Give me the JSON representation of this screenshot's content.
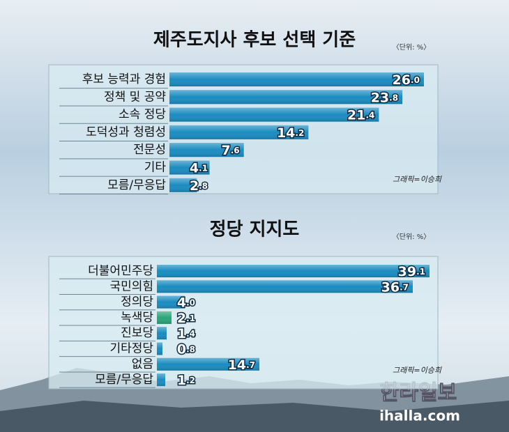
{
  "chart_data": [
    {
      "type": "bar",
      "title": "제주도지사  후보 선택 기준",
      "unit": "〈단위: %〉",
      "credit": "그래픽=이승희",
      "categories": [
        "후보 능력과 경험",
        "정책 및 공약",
        "소속 정당",
        "도덕성과 청렴성",
        "전문성",
        "기타",
        "모름/무응답"
      ],
      "values": [
        26.0,
        23.8,
        21.4,
        14.2,
        7.6,
        4.1,
        2.8
      ],
      "value_labels": [
        "26.0",
        "23.8",
        "21.4",
        "14.2",
        "7.6",
        "4.1",
        "2.8"
      ],
      "colors": [
        "#1b8cc0",
        "#1b8cc0",
        "#1b8cc0",
        "#1b8cc0",
        "#1b8cc0",
        "#1b8cc0",
        "#1b8cc0"
      ],
      "xlim": [
        0,
        27
      ]
    },
    {
      "type": "bar",
      "title": "정당 지지도",
      "unit": "〈단위: %〉",
      "credit": "그래픽=이승희",
      "categories": [
        "더불어민주당",
        "국민의힘",
        "정의당",
        "녹색당",
        "진보당",
        "기타정당",
        "없음",
        "모름/무응답"
      ],
      "values": [
        39.1,
        36.7,
        4.0,
        2.1,
        1.4,
        0.8,
        14.7,
        1.2
      ],
      "value_labels": [
        "39.1",
        "36.7",
        "4.0",
        "2.1",
        "1.4",
        "0.8",
        "14.7",
        "1.2"
      ],
      "colors": [
        "#1b8cc0",
        "#1b8cc0",
        "#1b8cc0",
        "#2aa57a",
        "#1b8cc0",
        "#1b8cc0",
        "#1b8cc0",
        "#1b8cc0"
      ],
      "xlim": [
        0,
        40
      ]
    }
  ],
  "brand": {
    "name": "한라일보",
    "url": "ihalla.com"
  }
}
